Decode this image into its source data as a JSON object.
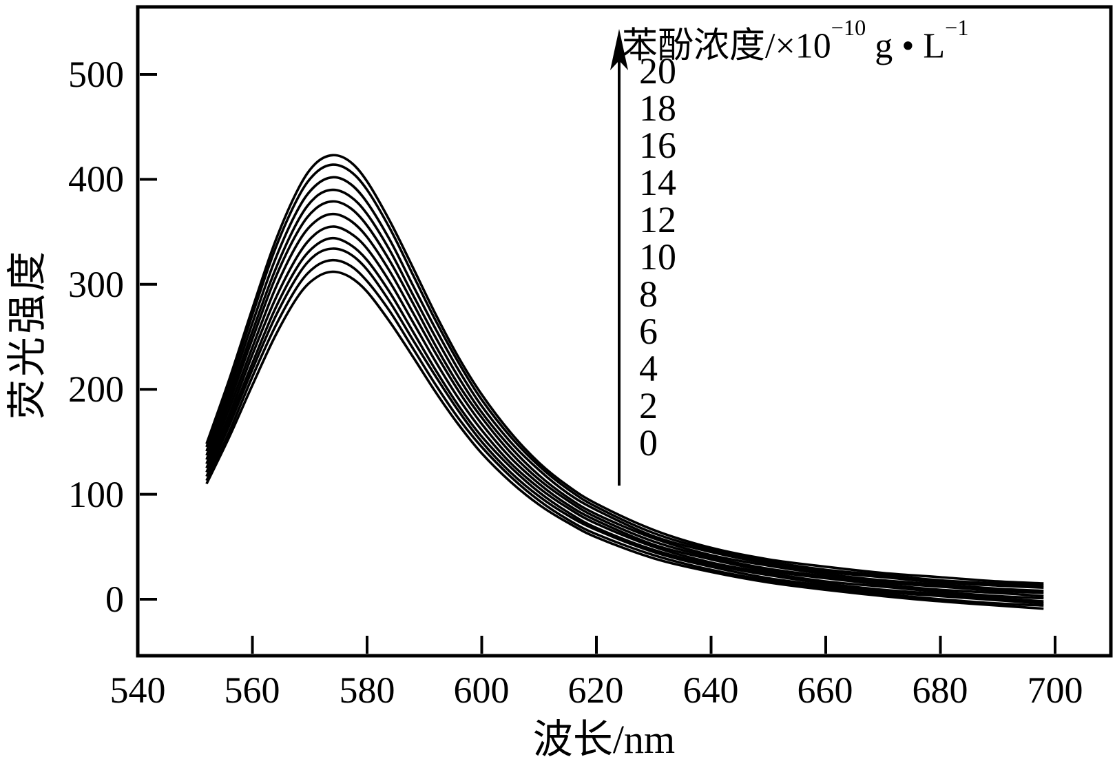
{
  "figure": {
    "background": "#ffffff",
    "line_color": "#000000"
  },
  "chart_data": {
    "type": "line",
    "title": "",
    "xlabel": "波长/nm",
    "ylabel": "荧光强度",
    "xlim": [
      540,
      700
    ],
    "ylim": [
      0,
      500
    ],
    "xticks": [
      540,
      560,
      580,
      600,
      620,
      640,
      660,
      680,
      700
    ],
    "yticks": [
      0,
      100,
      200,
      300,
      400,
      500
    ],
    "grid": false,
    "legend_position": "upper right inside, vertical arrow with concentrations",
    "peak_wavelength_nm": 574,
    "x": [
      552,
      556,
      560,
      564,
      568,
      571,
      574,
      577,
      580,
      584,
      588,
      592,
      596,
      600,
      605,
      610,
      615,
      620,
      630,
      640,
      650,
      660,
      670,
      680,
      690,
      698
    ],
    "series": [
      {
        "name": "0",
        "values": [
          110,
          155,
          204,
          251,
          289,
          306,
          312,
          307,
          293,
          264,
          231,
          197,
          166,
          139,
          112,
          90,
          73,
          59,
          39,
          26,
          16,
          9,
          3,
          -2,
          -6,
          -9
        ]
      },
      {
        "name": "2",
        "values": [
          113,
          160,
          212,
          260,
          299,
          317,
          323,
          318,
          303,
          274,
          239,
          204,
          172,
          145,
          117,
          94,
          76,
          62,
          42,
          28,
          18,
          11,
          5,
          0,
          -4,
          -6
        ]
      },
      {
        "name": "4",
        "values": [
          117,
          166,
          219,
          269,
          309,
          328,
          334,
          329,
          314,
          283,
          247,
          212,
          179,
          150,
          121,
          98,
          80,
          66,
          45,
          31,
          20,
          13,
          7,
          3,
          -1,
          -4
        ]
      },
      {
        "name": "6",
        "values": [
          121,
          171,
          225,
          277,
          318,
          337,
          344,
          338,
          323,
          292,
          255,
          218,
          184,
          155,
          126,
          102,
          83,
          68,
          47,
          33,
          23,
          15,
          9,
          5,
          1,
          -2
        ]
      },
      {
        "name": "8",
        "values": [
          125,
          176,
          233,
          286,
          328,
          348,
          355,
          349,
          334,
          302,
          264,
          226,
          191,
          161,
          130,
          106,
          87,
          72,
          50,
          35,
          25,
          17,
          12,
          7,
          3,
          1
        ]
      },
      {
        "name": "10",
        "values": [
          129,
          182,
          240,
          296,
          340,
          360,
          367,
          361,
          345,
          312,
          273,
          234,
          198,
          167,
          135,
          110,
          90,
          75,
          52,
          38,
          27,
          20,
          14,
          9,
          6,
          3
        ]
      },
      {
        "name": "12",
        "values": [
          133,
          188,
          248,
          306,
          351,
          372,
          379,
          373,
          356,
          322,
          282,
          241,
          204,
          173,
          140,
          114,
          94,
          78,
          55,
          40,
          29,
          22,
          16,
          12,
          8,
          6
        ]
      },
      {
        "name": "14",
        "values": [
          137,
          193,
          255,
          314,
          361,
          383,
          390,
          384,
          367,
          332,
          290,
          249,
          211,
          178,
          145,
          118,
          97,
          81,
          58,
          42,
          32,
          24,
          18,
          14,
          10,
          8
        ]
      },
      {
        "name": "16",
        "values": [
          141,
          199,
          263,
          324,
          372,
          394,
          402,
          396,
          378,
          342,
          299,
          257,
          218,
          184,
          150,
          123,
          101,
          85,
          60,
          45,
          34,
          26,
          21,
          16,
          13,
          11
        ]
      },
      {
        "name": "18",
        "values": [
          145,
          205,
          271,
          334,
          383,
          406,
          414,
          408,
          390,
          353,
          309,
          265,
          225,
          190,
          155,
          127,
          105,
          88,
          63,
          47,
          36,
          28,
          23,
          18,
          15,
          13
        ]
      },
      {
        "name": "20",
        "values": [
          148,
          210,
          277,
          341,
          391,
          415,
          423,
          417,
          398,
          360,
          316,
          271,
          230,
          195,
          159,
          130,
          108,
          91,
          66,
          49,
          38,
          31,
          25,
          21,
          17,
          15
        ]
      }
    ]
  },
  "axes": {
    "x_title": "波长/nm",
    "y_title": "荧光强度"
  },
  "legend": {
    "title_main": "苯酚浓度/×10",
    "title_sup1": "−10",
    "title_mid": " g • L",
    "title_sup2": "−1",
    "values": [
      "20",
      "18",
      "16",
      "14",
      "12",
      "10",
      "8",
      "6",
      "4",
      "2",
      "0"
    ]
  }
}
